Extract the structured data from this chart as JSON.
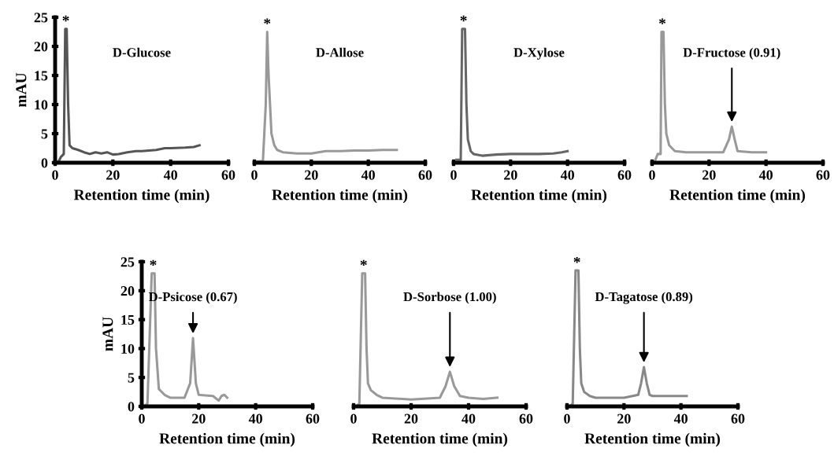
{
  "chart_data": [
    {
      "type": "line",
      "xlabel": "Retention time (min)",
      "ylabel": "mAU",
      "xlim": [
        0,
        60
      ],
      "xticks": [
        0,
        20,
        40,
        60
      ],
      "ylim": [
        0,
        25
      ],
      "yticks": [
        0,
        5,
        10,
        15,
        20,
        25
      ],
      "grid": false,
      "legend": false,
      "series": [
        {
          "color": "#555555",
          "x": [
            1,
            2,
            3,
            3.5,
            4,
            4.5,
            5,
            6,
            8,
            10,
            12,
            14,
            16,
            18,
            20,
            22,
            25,
            28,
            30,
            35,
            38,
            40,
            45,
            48,
            50
          ],
          "values": [
            0,
            1,
            1.5,
            23,
            23,
            10,
            3,
            2.5,
            2.2,
            1.8,
            1.5,
            1.8,
            1.6,
            1.8,
            1.4,
            1.5,
            1.8,
            2,
            2,
            2.2,
            2.5,
            2.5,
            2.6,
            2.7,
            3
          ]
        }
      ],
      "annotations": [
        {
          "text": "*",
          "x": 3.7,
          "y": 23
        },
        "D-Glucose"
      ]
    },
    {
      "type": "line",
      "xlabel": "Retention time (min)",
      "xlim": [
        0,
        60
      ],
      "xticks": [
        0,
        20,
        40,
        60
      ],
      "ylim": [
        0,
        25
      ],
      "tick_labels": "x",
      "grid": false,
      "legend": false,
      "series": [
        {
          "color": "#999999",
          "x": [
            1,
            3,
            4,
            4.5,
            5,
            6,
            7,
            8,
            10,
            15,
            20,
            25,
            30,
            35,
            40,
            45,
            50
          ],
          "values": [
            0.2,
            0.3,
            10,
            22.5,
            15,
            5,
            3,
            2.2,
            1.8,
            1.6,
            1.6,
            2,
            2,
            2.1,
            2.1,
            2.2,
            2.2
          ]
        }
      ],
      "annotations": [
        {
          "text": "*",
          "x": 4.5,
          "y": 22.5
        },
        "D-Allose"
      ]
    },
    {
      "type": "line",
      "xlabel": "Retention time (min)",
      "xlim": [
        0,
        60
      ],
      "xticks": [
        0,
        20,
        40,
        60
      ],
      "ylim": [
        0,
        25
      ],
      "tick_labels": "x",
      "grid": false,
      "legend": false,
      "series": [
        {
          "color": "#666666",
          "x": [
            1,
            2.5,
            3,
            4,
            4.5,
            5,
            6,
            7,
            10,
            15,
            20,
            25,
            30,
            35,
            38,
            40
          ],
          "values": [
            0.5,
            0.5,
            23,
            23,
            10,
            4,
            2,
            1.5,
            1.2,
            1.4,
            1.5,
            1.5,
            1.5,
            1.6,
            1.8,
            2
          ]
        }
      ],
      "annotations": [
        {
          "text": "*",
          "x": 3.5,
          "y": 23
        },
        "D-Xylose"
      ]
    },
    {
      "type": "line",
      "xlabel": "Retention time (min)",
      "xlim": [
        0,
        60
      ],
      "xticks": [
        0,
        20,
        40,
        60
      ],
      "ylim": [
        0,
        25
      ],
      "tick_labels": "x",
      "grid": false,
      "legend": false,
      "series": [
        {
          "color": "#999999",
          "x": [
            1,
            2,
            3,
            3.3,
            4,
            4.5,
            5,
            6,
            8,
            12,
            20,
            25,
            27,
            28,
            29,
            30,
            35,
            40
          ],
          "values": [
            0.3,
            1.5,
            1.5,
            22.5,
            22.5,
            10,
            5,
            3,
            2,
            1.8,
            1.8,
            1.8,
            4,
            6.2,
            4,
            2,
            1.8,
            1.8
          ]
        }
      ],
      "annotations": [
        {
          "text": "*",
          "x": 3.6,
          "y": 22.5
        },
        {
          "text": "D-Fructose (0.91)",
          "x": 28,
          "y": 6.2
        }
      ]
    },
    {
      "type": "line",
      "xlabel": "Retention time (min)",
      "ylabel": "mAU",
      "xlim": [
        0,
        60
      ],
      "xticks": [
        0,
        20,
        40,
        60
      ],
      "ylim": [
        0,
        25
      ],
      "yticks": [
        0,
        5,
        10,
        15,
        20,
        25
      ],
      "grid": false,
      "legend": false,
      "series": [
        {
          "color": "#999999",
          "x": [
            1,
            2,
            3.5,
            4.5,
            5,
            6,
            8,
            10,
            15,
            17,
            18,
            19,
            20,
            25,
            27,
            28,
            29,
            30
          ],
          "values": [
            0,
            0.5,
            23,
            23,
            10,
            3,
            2,
            1.5,
            1.5,
            4,
            11.8,
            4,
            2,
            1.8,
            1,
            1.8,
            2,
            1.5
          ]
        }
      ],
      "annotations": [
        {
          "text": "*",
          "x": 4,
          "y": 23
        },
        {
          "text": "D-Psicose (0.67)",
          "x": 18,
          "y": 11.8
        }
      ]
    },
    {
      "type": "line",
      "xlabel": "Retention time (min)",
      "xlim": [
        0,
        60
      ],
      "xticks": [
        0,
        20,
        40,
        60
      ],
      "ylim": [
        0,
        25
      ],
      "tick_labels": "x",
      "grid": false,
      "legend": false,
      "series": [
        {
          "color": "#999999",
          "x": [
            1,
            2,
            3,
            4,
            4.5,
            5,
            6,
            8,
            10,
            20,
            30,
            32,
            33.5,
            35,
            37,
            40,
            45,
            50
          ],
          "values": [
            0,
            0.5,
            23,
            23,
            10,
            4,
            2.8,
            2,
            1.5,
            1.2,
            1.5,
            3.5,
            6,
            3.5,
            1.8,
            1.5,
            1.3,
            1.5
          ]
        }
      ],
      "annotations": [
        {
          "text": "*",
          "x": 3.5,
          "y": 23
        },
        {
          "text": "D-Sorbose (1.00)",
          "x": 33.5,
          "y": 6
        }
      ]
    },
    {
      "type": "line",
      "xlabel": "Retention time (min)",
      "xlim": [
        0,
        60
      ],
      "xticks": [
        0,
        20,
        40,
        60
      ],
      "ylim": [
        0,
        25
      ],
      "tick_labels": "x",
      "grid": false,
      "legend": false,
      "series": [
        {
          "color": "#888888",
          "x": [
            1,
            2,
            3,
            4,
            4.5,
            5,
            6,
            8,
            10,
            20,
            25,
            26,
            27,
            28,
            29,
            30,
            35,
            42
          ],
          "values": [
            0,
            0.5,
            23.5,
            23.5,
            10,
            4,
            2.5,
            1.8,
            1.5,
            1.5,
            2,
            4,
            6.8,
            4,
            2,
            1.8,
            1.8,
            1.8
          ]
        }
      ],
      "annotations": [
        {
          "text": "*",
          "x": 3.5,
          "y": 23.5
        },
        {
          "text": "D-Tagatose (0.89)",
          "x": 27,
          "y": 6.8
        }
      ]
    }
  ]
}
